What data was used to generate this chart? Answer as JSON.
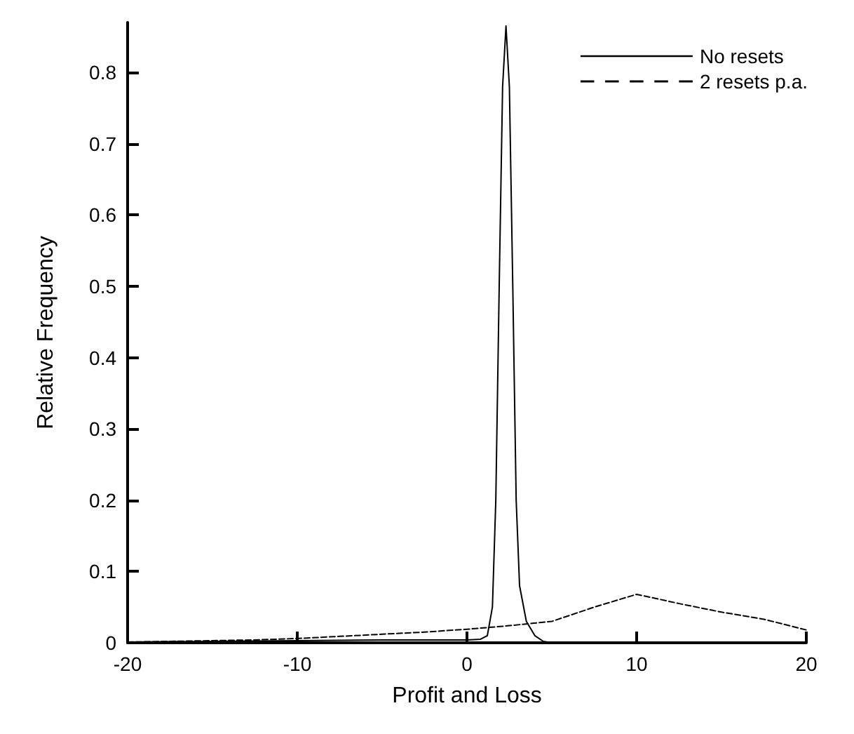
{
  "chart_data": {
    "type": "line",
    "xlabel": "Profit and Loss",
    "ylabel": "Relative Frequency",
    "xlim": [
      -20,
      20
    ],
    "xticks": [
      -20,
      -10,
      0,
      10,
      20
    ],
    "ylim": [
      0,
      0.87
    ],
    "yticks": [
      0,
      0.1,
      0.2,
      0.3,
      0.4,
      0.5,
      0.6,
      0.7,
      0.8
    ],
    "grid": false,
    "legend": "top right",
    "marker": "none",
    "series": [
      {
        "name": "No resets",
        "color": "#000000",
        "line_style": "solid",
        "x": [
          -20,
          -15,
          -10,
          -5,
          0,
          0.8,
          1.2,
          1.5,
          1.7,
          1.9,
          2.1,
          2.3,
          2.5,
          2.7,
          2.9,
          3.1,
          3.5,
          4,
          4.5,
          5,
          10,
          20
        ],
        "values": [
          0.001,
          0.002,
          0.003,
          0.004,
          0.004,
          0.005,
          0.01,
          0.05,
          0.2,
          0.5,
          0.78,
          0.865,
          0.78,
          0.5,
          0.2,
          0.08,
          0.03,
          0.01,
          0.002,
          0,
          0,
          0
        ]
      },
      {
        "name": "2 resets p.a.",
        "color": "#000000",
        "line_style": "dashed",
        "x": [
          -20,
          -17.5,
          -15,
          -12.5,
          -10,
          -7.5,
          -5,
          -2.5,
          0,
          2.5,
          5,
          7.5,
          10,
          12.5,
          15,
          17.5,
          20
        ],
        "values": [
          0.001,
          0.002,
          0.003,
          0.004,
          0.006,
          0.009,
          0.012,
          0.015,
          0.019,
          0.024,
          0.03,
          0.05,
          0.068,
          0.055,
          0.043,
          0.033,
          0.018
        ]
      }
    ]
  }
}
